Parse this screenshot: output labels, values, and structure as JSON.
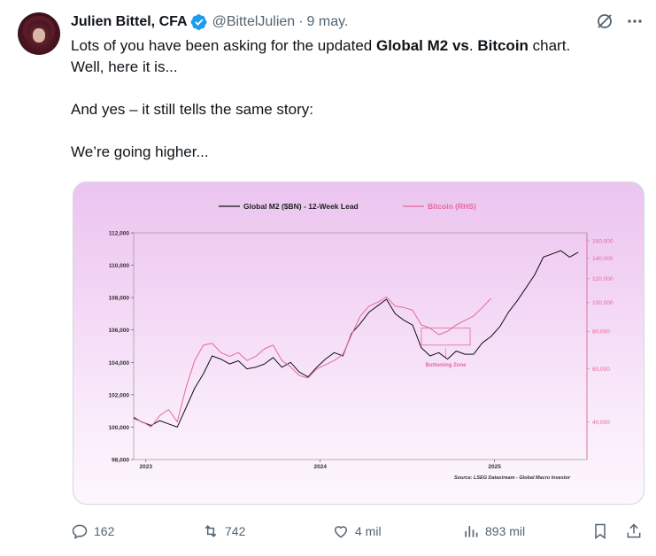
{
  "author": {
    "name": "Julien Bittel, CFA",
    "handle": "@BittelJulien",
    "separator": "·",
    "date": "9 may."
  },
  "text": {
    "line1_a": "Lots of you have been asking for the updated ",
    "line1_b": "Global M2 vs",
    "line1_c": ". ",
    "line1_d": "Bitcoin",
    "line1_e": " chart.",
    "line2": "Well, here it is...",
    "line3": "And yes – it still tells the same story:",
    "line4": "We’re going higher..."
  },
  "chart_data": {
    "type": "line",
    "legend": [
      "Global M2 ($BN) - 12-Week Lead",
      "Bitcoin (RHS)"
    ],
    "y_left_ticks": [
      "112,000",
      "110,000",
      "108,000",
      "106,000",
      "104,000",
      "102,000",
      "100,000",
      "98,000"
    ],
    "y_right_ticks": [
      "160,000",
      "140,000",
      "120,000",
      "100,000",
      "80,000",
      "60,000",
      "40,000"
    ],
    "x_ticks": [
      "2023",
      "2024",
      "2025"
    ],
    "annotation": "Bottoming Zone",
    "source": "Source: LSEG Datastream - Global Macro Investor",
    "ylim_left": [
      98000,
      112000
    ],
    "ylim_right_log": [
      30000,
      170000
    ],
    "series": [
      {
        "name": "Global M2 ($BN) - 12-Week Lead",
        "color": "#111111",
        "x": [
          2022.95,
          2023.0,
          2023.05,
          2023.1,
          2023.15,
          2023.2,
          2023.25,
          2023.3,
          2023.35,
          2023.4,
          2023.45,
          2023.5,
          2023.55,
          2023.6,
          2023.65,
          2023.7,
          2023.75,
          2023.8,
          2023.85,
          2023.9,
          2023.95,
          2024.0,
          2024.05,
          2024.1,
          2024.15,
          2024.2,
          2024.25,
          2024.3,
          2024.35,
          2024.4,
          2024.45,
          2024.5,
          2024.55,
          2024.6,
          2024.65,
          2024.7,
          2024.75,
          2024.8,
          2024.85,
          2024.9,
          2024.95,
          2025.0,
          2025.05,
          2025.1,
          2025.15,
          2025.2,
          2025.25,
          2025.3,
          2025.35,
          2025.4,
          2025.45,
          2025.5
        ],
        "values": [
          100600,
          100300,
          100100,
          100400,
          100200,
          100000,
          101200,
          102400,
          103300,
          104400,
          104200,
          103900,
          104100,
          103600,
          103700,
          103900,
          104300,
          103700,
          104000,
          103400,
          103100,
          103700,
          104200,
          104600,
          104400,
          105800,
          106400,
          107100,
          107500,
          107900,
          107000,
          106600,
          106300,
          104900,
          104400,
          104600,
          104200,
          104700,
          104500,
          104500,
          105200,
          105600,
          106200,
          107100,
          107800,
          108600,
          109400,
          110500,
          110700,
          110900,
          110500,
          110800
        ]
      },
      {
        "name": "Bitcoin (RHS)",
        "color": "#e46a98",
        "x": [
          2022.95,
          2023.0,
          2023.05,
          2023.1,
          2023.15,
          2023.2,
          2023.25,
          2023.3,
          2023.35,
          2023.4,
          2023.45,
          2023.5,
          2023.55,
          2023.6,
          2023.65,
          2023.7,
          2023.75,
          2023.8,
          2023.85,
          2023.9,
          2023.95,
          2024.0,
          2024.05,
          2024.1,
          2024.15,
          2024.2,
          2024.25,
          2024.3,
          2024.35,
          2024.4,
          2024.45,
          2024.5,
          2024.55,
          2024.6,
          2024.65,
          2024.7,
          2024.75,
          2024.8,
          2024.85,
          2024.9,
          2024.95,
          2025.0
        ],
        "values": [
          41000,
          40000,
          38500,
          42000,
          44000,
          40000,
          52000,
          64000,
          72000,
          73000,
          68000,
          66000,
          68000,
          64000,
          66000,
          70000,
          72000,
          64000,
          61000,
          57000,
          56000,
          60000,
          62000,
          64000,
          67000,
          78000,
          90000,
          97000,
          100000,
          104000,
          97000,
          96000,
          94000,
          84000,
          82000,
          78000,
          80000,
          84000,
          87000,
          90000,
          96000,
          103000
        ]
      }
    ]
  },
  "actions": {
    "replies": "162",
    "reposts": "742",
    "likes": "4 mil",
    "views": "893 mil"
  },
  "icons": [
    "reply-icon",
    "repost-icon",
    "like-icon",
    "views-icon",
    "bookmark-icon",
    "share-icon",
    "grok-icon",
    "more-icon",
    "verified-icon"
  ]
}
